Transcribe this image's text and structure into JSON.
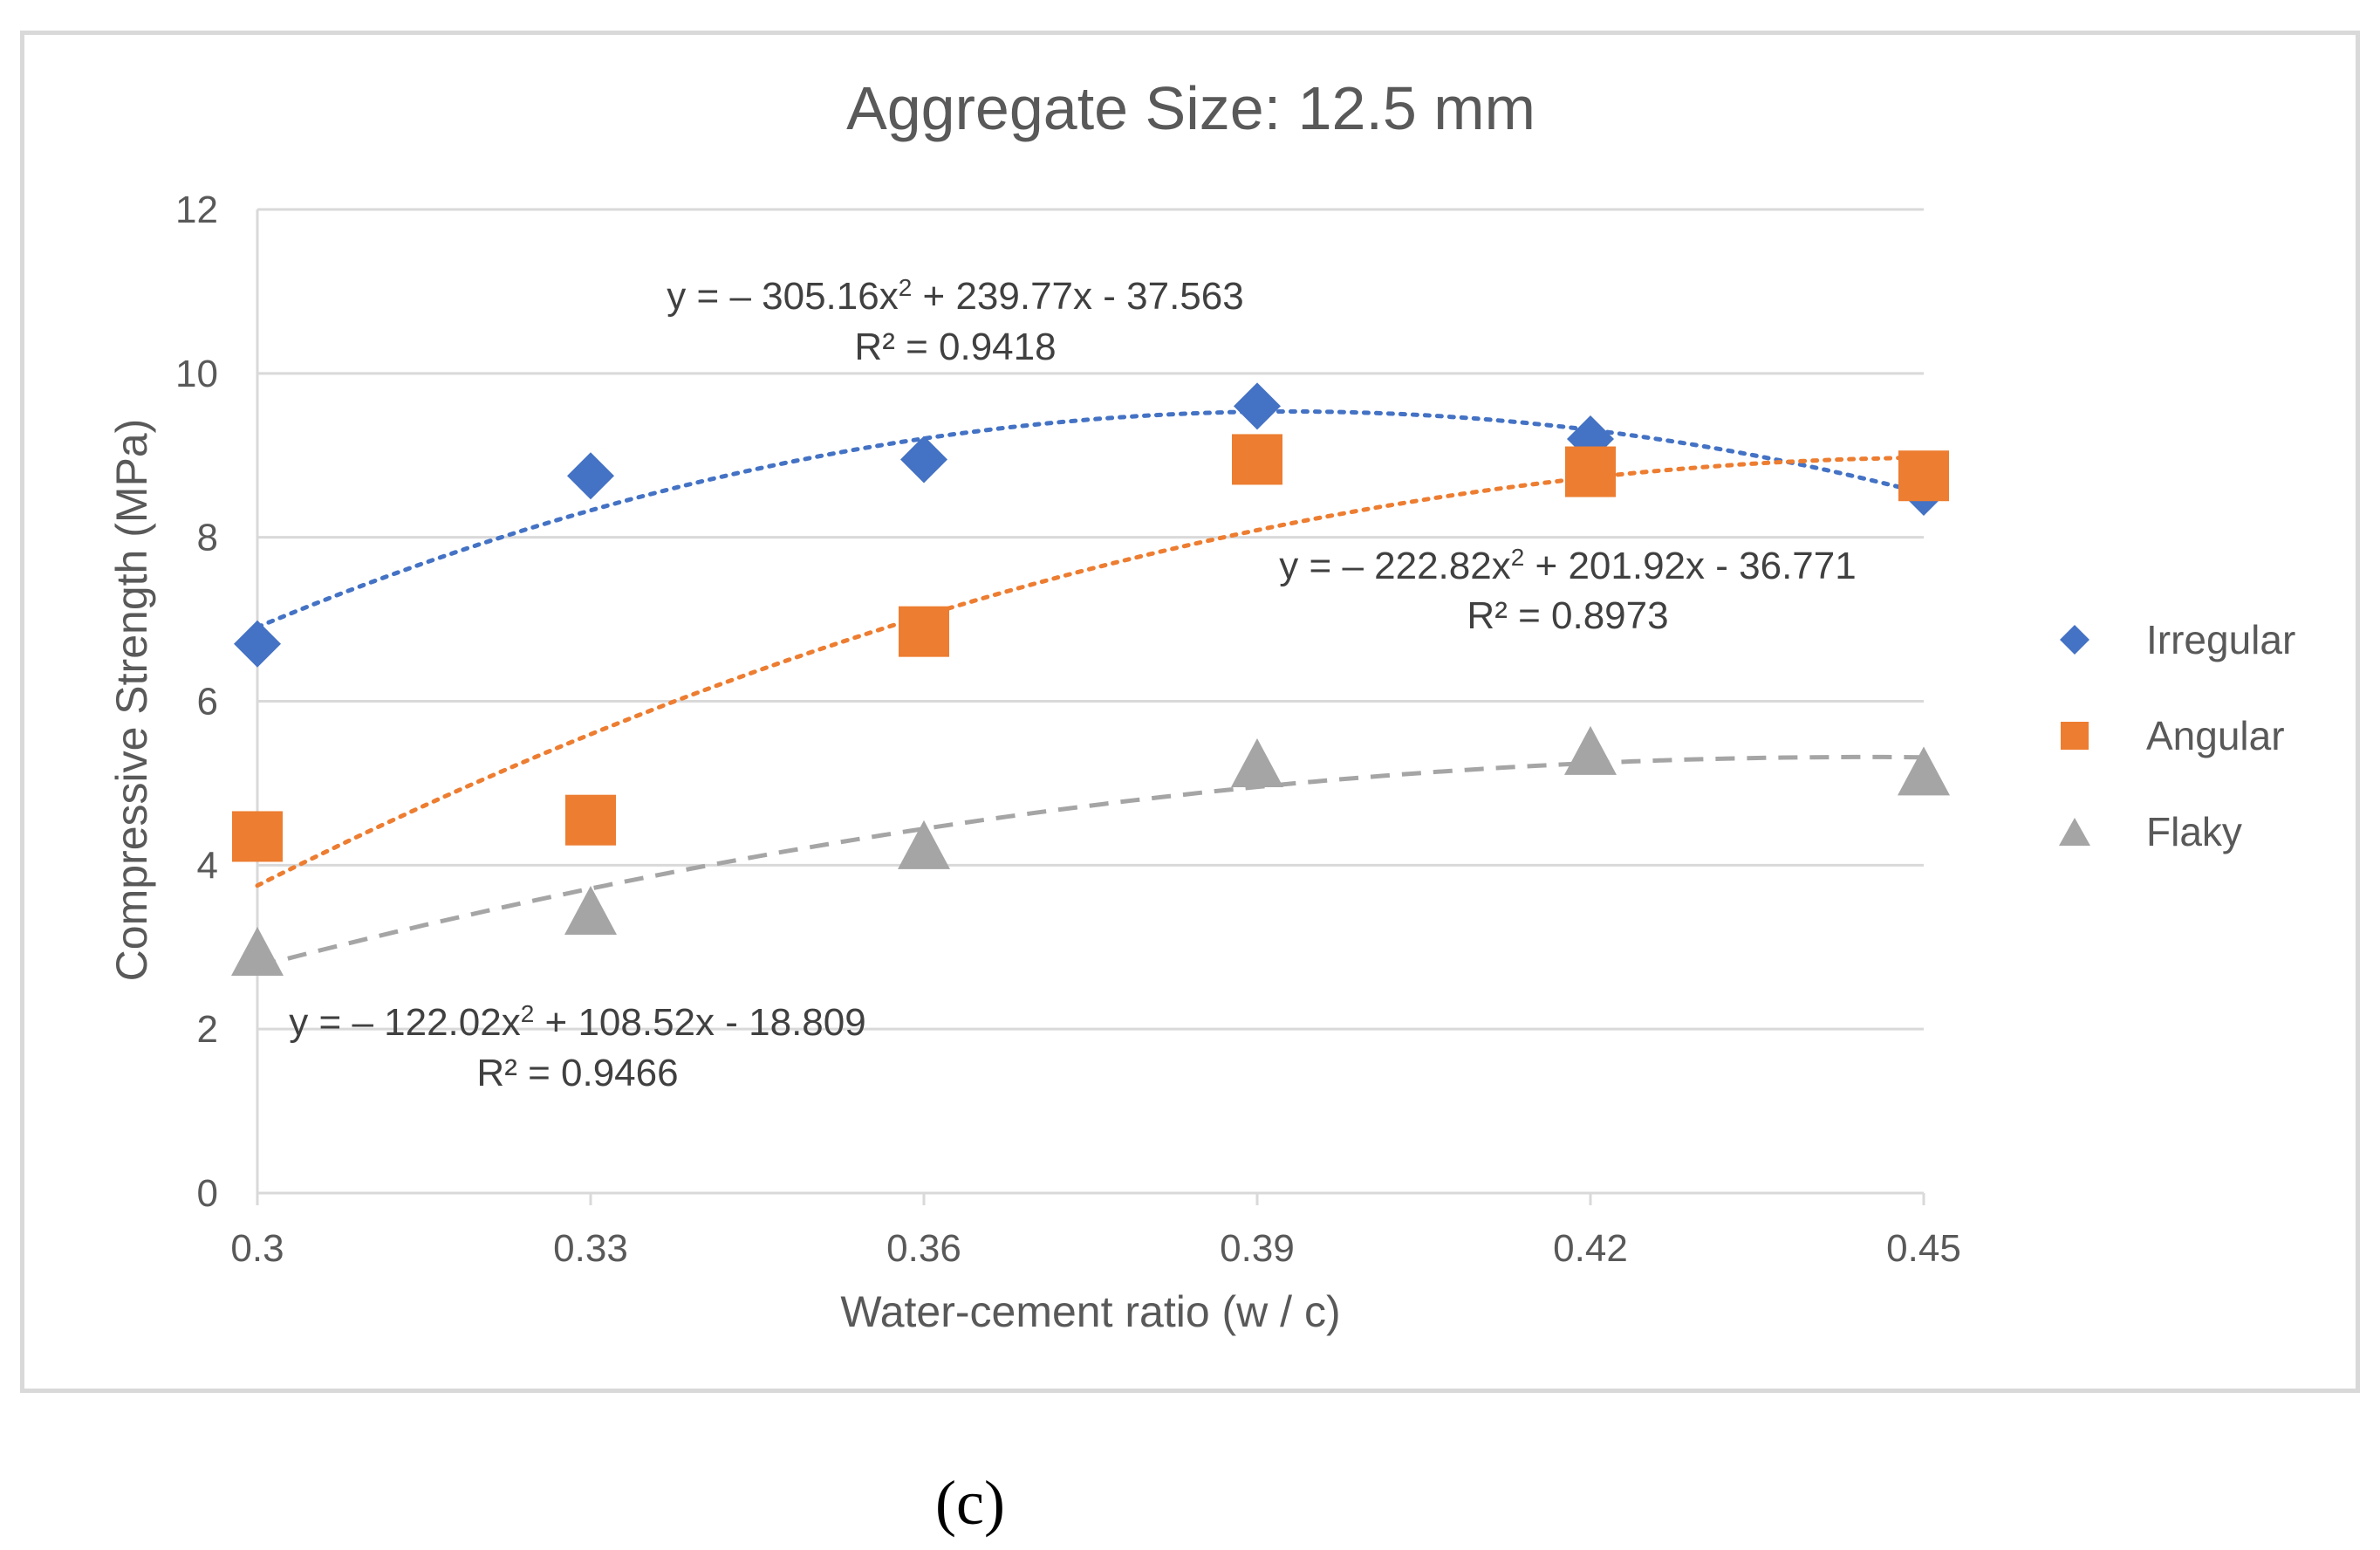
{
  "chart_data": {
    "type": "scatter",
    "title": "Aggregate Size: 12.5 mm",
    "xlabel": "Water-cement ratio (w / c)",
    "ylabel": "Compressive Strength (MPa)",
    "x": [
      0.3,
      0.33,
      0.36,
      0.39,
      0.42,
      0.45
    ],
    "x_tick_labels": [
      "0.3",
      "0.33",
      "0.36",
      "0.39",
      "0.42",
      "0.45"
    ],
    "y_ticks": [
      0,
      2,
      4,
      6,
      8,
      10,
      12
    ],
    "y_tick_labels": [
      "0",
      "2",
      "4",
      "6",
      "8",
      "10",
      "12"
    ],
    "ylim": [
      0,
      12
    ],
    "grid": true,
    "legend_position": "right",
    "series": [
      {
        "name": "Irregular",
        "marker": "diamond",
        "color": "#4472C4",
        "values": [
          6.7,
          8.75,
          8.95,
          9.6,
          9.2,
          8.55
        ],
        "trendline": {
          "type": "polynomial",
          "style": "dotted",
          "a": -305.16,
          "b": 239.77,
          "c": -37.563,
          "equation_text": "y = – 305.16x",
          "equation_rest": " + 239.77x - 37.563",
          "r2_text": "R² = 0.9418"
        }
      },
      {
        "name": "Angular",
        "marker": "square",
        "color": "#ED7D31",
        "values": [
          4.35,
          4.55,
          6.85,
          8.95,
          8.8,
          8.75
        ],
        "trendline": {
          "type": "polynomial",
          "style": "dotted",
          "a": -222.82,
          "b": 201.92,
          "c": -36.771,
          "equation_text": "y = – 222.82x",
          "equation_rest": " + 201.92x - 36.771",
          "r2_text": "R² = 0.8973"
        }
      },
      {
        "name": "Flaky",
        "marker": "triangle",
        "color": "#A5A5A5",
        "values": [
          2.95,
          3.45,
          4.25,
          5.25,
          5.4,
          5.15
        ],
        "trendline": {
          "type": "polynomial",
          "style": "dashed",
          "a": -122.02,
          "b": 108.52,
          "c": -18.809,
          "equation_text": "y = – 122.02x",
          "equation_rest": " + 108.52x - 18.809",
          "r2_text": "R² = 0.9466"
        }
      }
    ]
  },
  "superscript": "2",
  "caption": "(c)"
}
